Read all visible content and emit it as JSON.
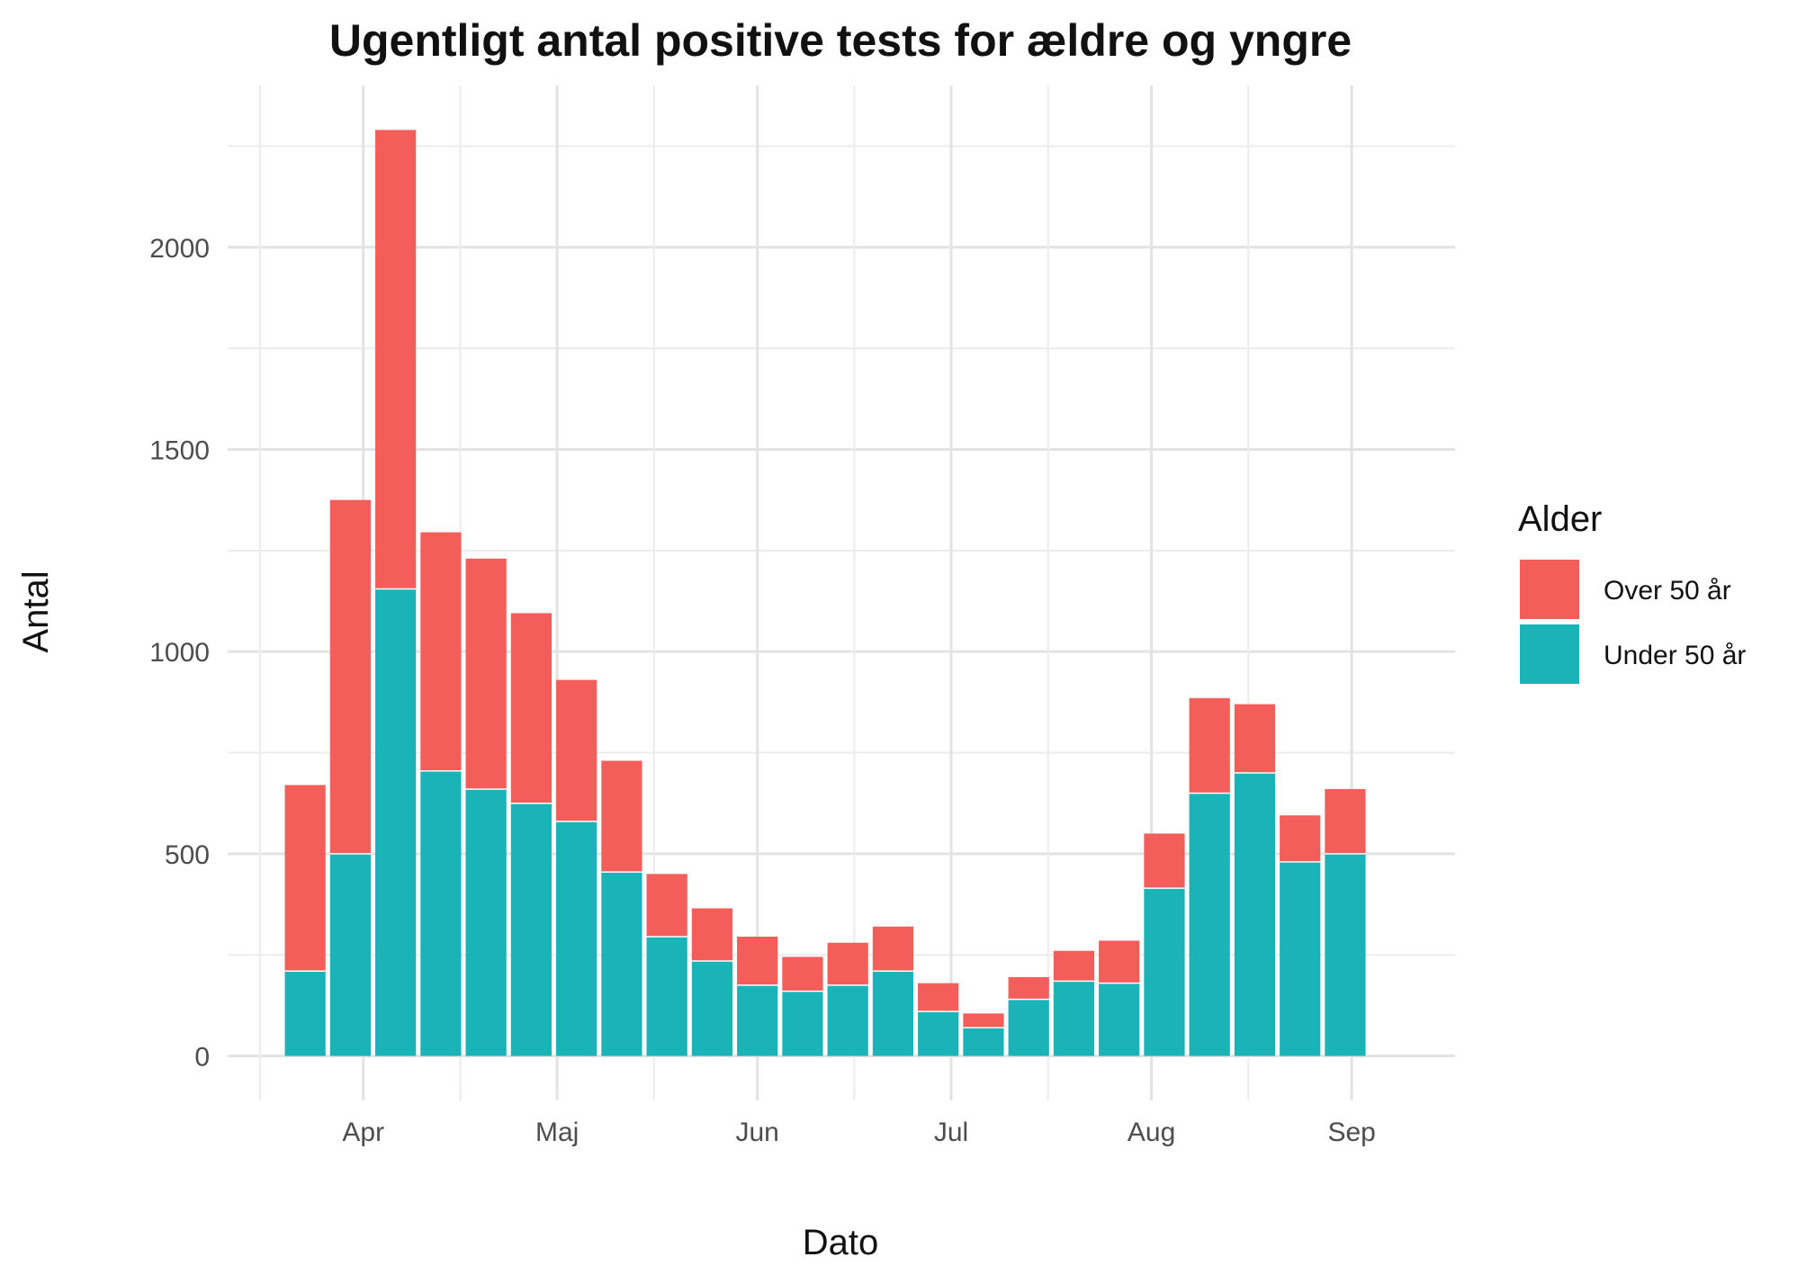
{
  "chart_data": {
    "type": "bar",
    "stacked": true,
    "title": "Ugentligt antal positive tests for ældre og yngre",
    "xlabel": "Dato",
    "ylabel": "Antal",
    "x_ticks": [
      "Apr",
      "Maj",
      "Jun",
      "Jul",
      "Aug",
      "Sep"
    ],
    "y_ticks": [
      "0",
      "500",
      "1000",
      "1500",
      "2000"
    ],
    "ylim": [
      -110,
      2400
    ],
    "grid": true,
    "legend": {
      "title": "Alder",
      "position": "right",
      "items": [
        "Over 50 år",
        "Under 50 år"
      ]
    },
    "categories": [
      "2020-03-23",
      "2020-03-30",
      "2020-04-06",
      "2020-04-13",
      "2020-04-20",
      "2020-04-27",
      "2020-05-04",
      "2020-05-11",
      "2020-05-18",
      "2020-05-25",
      "2020-06-01",
      "2020-06-08",
      "2020-06-15",
      "2020-06-22",
      "2020-06-29",
      "2020-07-06",
      "2020-07-13",
      "2020-07-20",
      "2020-07-27",
      "2020-08-03",
      "2020-08-10",
      "2020-08-17",
      "2020-08-24",
      "2020-08-31"
    ],
    "series": [
      {
        "name": "Under 50 år",
        "color": "#19b3b8",
        "values": [
          210,
          500,
          1155,
          705,
          660,
          625,
          580,
          455,
          295,
          235,
          175,
          160,
          175,
          210,
          110,
          70,
          140,
          185,
          180,
          415,
          650,
          700,
          480,
          500
        ]
      },
      {
        "name": "Over 50 år",
        "color": "#f35e5a",
        "values": [
          460,
          875,
          1135,
          590,
          570,
          470,
          350,
          275,
          155,
          130,
          120,
          85,
          105,
          110,
          70,
          35,
          55,
          75,
          105,
          135,
          235,
          170,
          115,
          160
        ]
      }
    ]
  }
}
